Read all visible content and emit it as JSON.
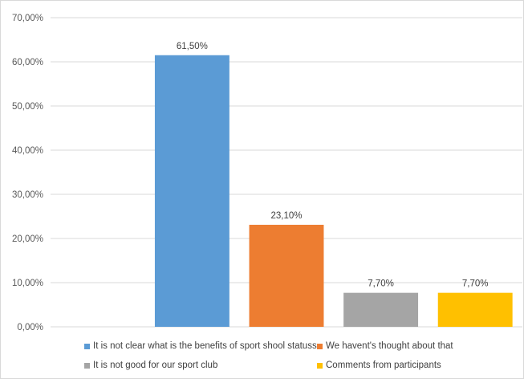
{
  "chart_data": {
    "type": "bar",
    "title": "",
    "xlabel": "",
    "ylabel": "",
    "ylim": [
      0,
      70
    ],
    "yticks": [
      "0,00%",
      "10,00%",
      "20,00%",
      "30,00%",
      "40,00%",
      "50,00%",
      "60,00%",
      "70,00%"
    ],
    "grid": true,
    "legend_position": "bottom",
    "slots": 5,
    "series": [
      {
        "name": "It is not clear what is the benefits of sport shool statuss",
        "slot": 1,
        "value": 61.5,
        "label": "61,50%",
        "color": "#5b9bd5"
      },
      {
        "name": "We havent's thought about that",
        "slot": 2,
        "value": 23.1,
        "label": "23,10%",
        "color": "#ed7d31"
      },
      {
        "name": "It is not good for our sport club",
        "slot": 3,
        "value": 7.7,
        "label": "7,70%",
        "color": "#a5a5a5"
      },
      {
        "name": "Comments from participants",
        "slot": 4,
        "value": 7.7,
        "label": "7,70%",
        "color": "#ffc000"
      }
    ]
  }
}
